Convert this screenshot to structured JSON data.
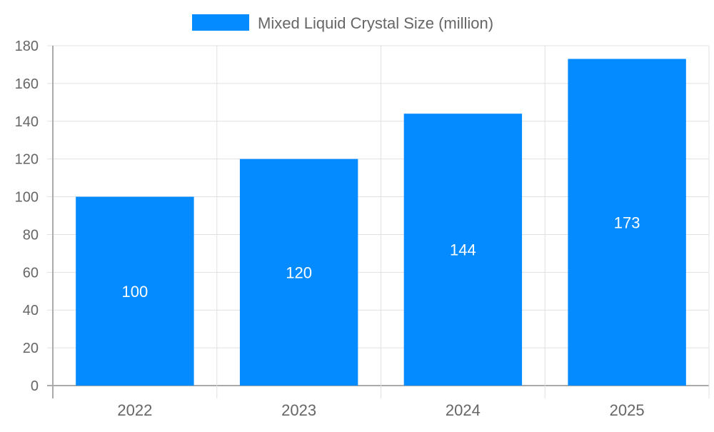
{
  "chart_data": {
    "type": "bar",
    "categories": [
      "2022",
      "2023",
      "2024",
      "2025"
    ],
    "series": [
      {
        "name": "Mixed Liquid Crystal Size (million)",
        "values": [
          100,
          120,
          144,
          173
        ],
        "color": "#038bff"
      }
    ],
    "data_labels": [
      "100",
      "120",
      "144",
      "173"
    ],
    "title": "",
    "xlabel": "",
    "ylabel": "",
    "ylim": [
      0,
      180
    ],
    "yticks": [
      "0",
      "20",
      "40",
      "60",
      "80",
      "100",
      "120",
      "140",
      "160",
      "180"
    ],
    "grid": true,
    "legend": "top"
  }
}
